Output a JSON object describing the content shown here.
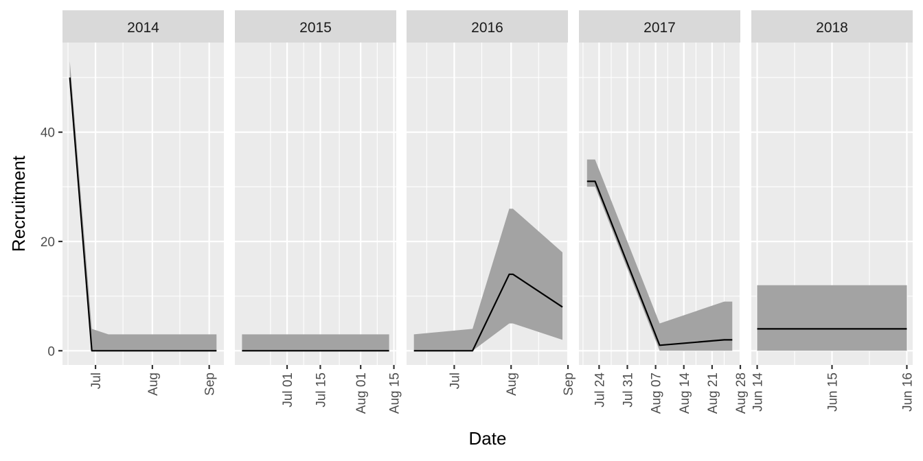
{
  "chart_data": {
    "type": "line",
    "xlabel": "Date",
    "ylabel": "Recruitment",
    "ylim": [
      -2.6,
      56.4
    ],
    "y_ticks": [
      0,
      20,
      40
    ],
    "y_tick_labels": [
      "0",
      "20",
      "40"
    ],
    "grid": true,
    "colors": {
      "line": "#000000",
      "ribbon": "#a3a3a3",
      "panel": "#ebebeb",
      "strip": "#d9d9d9"
    },
    "panels": [
      {
        "label": "2014",
        "xlim": [
          "2014-06-13",
          "2014-09-09"
        ],
        "x_ticks": [
          "2014-07-01",
          "2014-08-01",
          "2014-09-01"
        ],
        "x_tick_labels": [
          "Jul",
          "Aug",
          "Sep"
        ],
        "x_minor": [
          "2014-06-16",
          "2014-07-16",
          "2014-08-16"
        ],
        "points": [
          {
            "x": "2014-06-17",
            "y": 50,
            "lower": 49,
            "upper": 53
          },
          {
            "x": "2014-06-29",
            "y": 0,
            "lower": 0,
            "upper": 4
          },
          {
            "x": "2014-07-08",
            "y": 0,
            "lower": 0,
            "upper": 3
          },
          {
            "x": "2014-09-05",
            "y": 0,
            "lower": 0,
            "upper": 3
          }
        ]
      },
      {
        "label": "2015",
        "xlim": [
          "2015-06-09",
          "2015-08-16"
        ],
        "x_ticks": [
          "2015-07-01",
          "2015-07-15",
          "2015-08-01",
          "2015-08-15"
        ],
        "x_tick_labels": [
          "Jul 01",
          "Jul 15",
          "Aug 01",
          "Aug 15"
        ],
        "x_minor": [
          "2015-06-24",
          "2015-07-08",
          "2015-07-23",
          "2015-08-08"
        ],
        "points": [
          {
            "x": "2015-06-12",
            "y": 0,
            "lower": 0,
            "upper": 3
          },
          {
            "x": "2015-08-13",
            "y": 0,
            "lower": 0,
            "upper": 3
          }
        ]
      },
      {
        "label": "2016",
        "xlim": [
          "2016-06-05",
          "2016-09-01"
        ],
        "x_ticks": [
          "2016-07-01",
          "2016-08-01",
          "2016-09-01"
        ],
        "x_tick_labels": [
          "Jul",
          "Aug",
          "Sep"
        ],
        "x_minor": [
          "2016-06-16",
          "2016-07-16",
          "2016-08-16"
        ],
        "points": [
          {
            "x": "2016-06-09",
            "y": 0,
            "lower": 0,
            "upper": 3
          },
          {
            "x": "2016-07-11",
            "y": 0,
            "lower": 0,
            "upper": 4
          },
          {
            "x": "2016-07-31",
            "y": 14,
            "lower": 5,
            "upper": 26
          },
          {
            "x": "2016-08-02",
            "y": 14,
            "lower": 5,
            "upper": 26
          },
          {
            "x": "2016-08-29",
            "y": 8,
            "lower": 2,
            "upper": 18
          }
        ]
      },
      {
        "label": "2017",
        "xlim": [
          "2017-07-19",
          "2017-08-28"
        ],
        "x_ticks": [
          "2017-07-24",
          "2017-07-31",
          "2017-08-07",
          "2017-08-14",
          "2017-08-21",
          "2017-08-28"
        ],
        "x_tick_labels": [
          "Jul 24",
          "Jul 31",
          "Aug 07",
          "Aug 14",
          "Aug 21",
          "Aug 28"
        ],
        "x_minor": [
          "2017-07-20",
          "2017-07-27",
          "2017-08-03",
          "2017-08-10",
          "2017-08-17",
          "2017-08-24"
        ],
        "points": [
          {
            "x": "2017-07-21",
            "y": 31,
            "lower": 30,
            "upper": 35
          },
          {
            "x": "2017-07-23",
            "y": 31,
            "lower": 30,
            "upper": 35
          },
          {
            "x": "2017-08-08",
            "y": 1,
            "lower": 0,
            "upper": 5
          },
          {
            "x": "2017-08-24",
            "y": 2,
            "lower": 0,
            "upper": 9
          },
          {
            "x": "2017-08-26",
            "y": 2,
            "lower": 0,
            "upper": 9
          }
        ]
      },
      {
        "label": "2018",
        "xlim": [
          "2018-06-13T22:07",
          "2018-06-16T01:53"
        ],
        "x_ticks": [
          "2018-06-14T00:00",
          "2018-06-15T00:00",
          "2018-06-16T00:00"
        ],
        "x_tick_labels": [
          "Jun 14",
          "Jun 15",
          "Jun 16"
        ],
        "x_minor": [
          "2018-06-14T12:00",
          "2018-06-15T12:00"
        ],
        "points": [
          {
            "x": "2018-06-14T00:00",
            "y": 4,
            "lower": 0,
            "upper": 12
          },
          {
            "x": "2018-06-16T00:00",
            "y": 4,
            "lower": 0,
            "upper": 12
          }
        ]
      }
    ]
  }
}
